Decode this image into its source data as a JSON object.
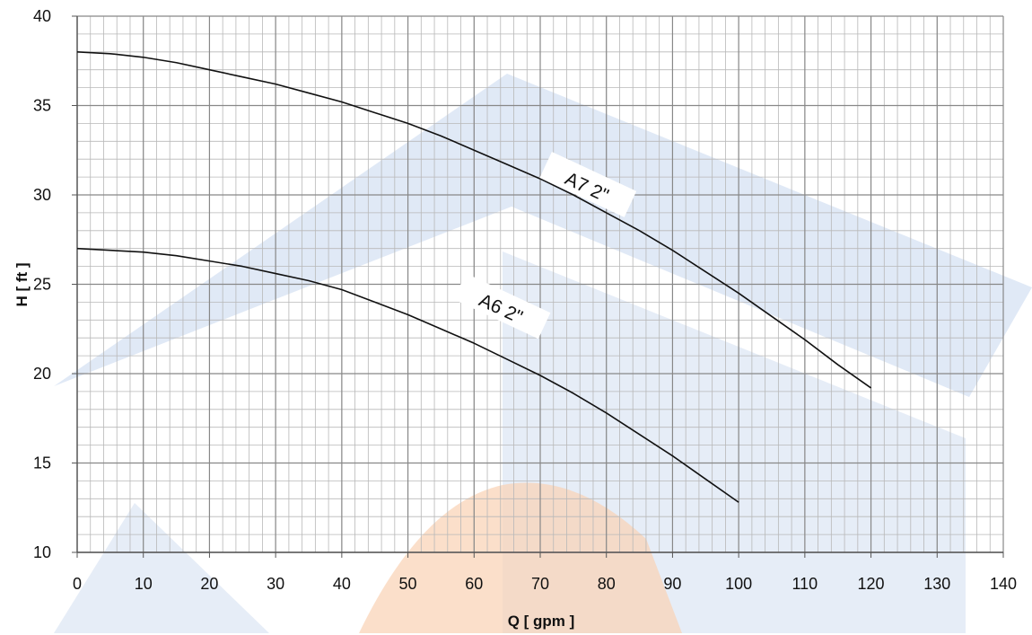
{
  "chart_data": {
    "type": "line",
    "title": "",
    "xlabel": "Q [ gpm ]",
    "ylabel": "H [ ft ]",
    "xlim": [
      0,
      140
    ],
    "ylim": [
      10,
      40
    ],
    "x_ticks": [
      0,
      10,
      20,
      30,
      40,
      50,
      60,
      70,
      80,
      90,
      100,
      110,
      120,
      130,
      140
    ],
    "y_ticks": [
      10,
      15,
      20,
      25,
      30,
      35,
      40
    ],
    "x_minor_step": 2,
    "y_minor_step": 1,
    "grid": true,
    "legend": "none",
    "colors": {
      "line": "#111111",
      "major_grid": "#888888",
      "minor_grid": "#b8b8b8",
      "watermark_blue": "#c7d7ee",
      "watermark_orange": "#f9d2b4"
    },
    "series": [
      {
        "name": "A7 2\"",
        "label_at": [
          77,
          30.4
        ],
        "label_angle": 25,
        "x": [
          0,
          5,
          10,
          15,
          20,
          25,
          30,
          35,
          40,
          45,
          50,
          55,
          60,
          65,
          70,
          75,
          80,
          85,
          90,
          95,
          100,
          105,
          110,
          115,
          120
        ],
        "y": [
          38.0,
          37.9,
          37.7,
          37.4,
          37.0,
          36.6,
          36.2,
          35.7,
          35.2,
          34.6,
          34.0,
          33.3,
          32.5,
          31.7,
          30.9,
          30.0,
          29.0,
          28.0,
          26.9,
          25.7,
          24.5,
          23.2,
          21.9,
          20.5,
          19.2
        ]
      },
      {
        "name": "A6 2\"",
        "label_at": [
          64,
          23.6
        ],
        "label_angle": 25,
        "x": [
          0,
          5,
          10,
          15,
          20,
          25,
          30,
          35,
          40,
          45,
          50,
          55,
          60,
          65,
          70,
          75,
          80,
          85,
          90,
          95,
          100
        ],
        "y": [
          27.0,
          26.9,
          26.8,
          26.6,
          26.3,
          26.0,
          25.6,
          25.2,
          24.7,
          24.0,
          23.3,
          22.5,
          21.7,
          20.8,
          19.9,
          18.9,
          17.8,
          16.6,
          15.4,
          14.1,
          12.8
        ]
      }
    ]
  }
}
